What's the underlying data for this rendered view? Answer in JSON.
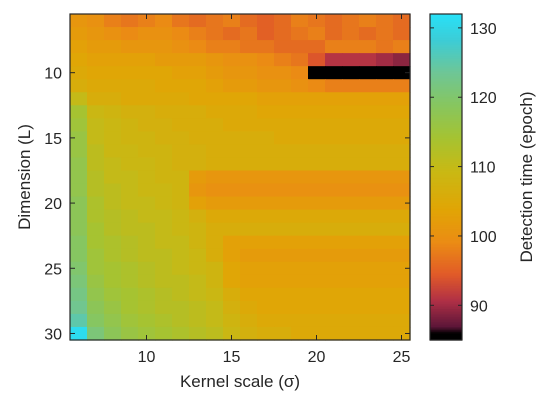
{
  "chart_data": {
    "type": "heatmap",
    "title": "",
    "xlabel": "Kernel scale (σ)",
    "ylabel": "Dimension (L)",
    "x": [
      6,
      7,
      8,
      9,
      10,
      11,
      12,
      13,
      14,
      15,
      16,
      17,
      18,
      19,
      20,
      21,
      22,
      23,
      24,
      25
    ],
    "y": [
      6,
      7,
      8,
      9,
      10,
      11,
      12,
      13,
      14,
      15,
      16,
      17,
      18,
      19,
      20,
      21,
      22,
      23,
      24,
      25,
      26,
      27,
      28,
      29,
      30
    ],
    "xlim": [
      5.5,
      25.5
    ],
    "ylim": [
      5.5,
      30.5
    ],
    "x_ticks": [
      10,
      15,
      20,
      25
    ],
    "y_ticks": [
      10,
      15,
      20,
      25,
      30
    ],
    "y_reversed": true,
    "colorbar": {
      "label": "Detection time (epoch)",
      "min": 85,
      "max": 132,
      "ticks": [
        90,
        100,
        110,
        120,
        130
      ]
    },
    "grid": false,
    "z": [
      [
        101,
        100,
        98,
        97,
        98,
        99,
        97,
        96,
        97,
        98,
        96,
        95,
        96,
        98,
        97,
        96,
        97,
        98,
        97,
        96
      ],
      [
        102,
        101,
        100,
        99,
        100,
        100,
        99,
        98,
        97,
        96,
        97,
        95,
        96,
        97,
        98,
        96,
        97,
        96,
        97,
        96
      ],
      [
        103,
        102,
        102,
        101,
        101,
        101,
        100,
        99,
        98,
        98,
        97,
        97,
        96,
        96,
        96,
        98,
        98,
        98,
        97,
        98
      ],
      [
        104,
        103,
        103,
        103,
        103,
        102,
        102,
        102,
        101,
        100,
        100,
        99,
        98,
        97,
        94,
        91,
        91,
        91,
        90,
        89
      ],
      [
        105,
        104,
        104,
        104,
        104,
        104,
        103,
        103,
        102,
        101,
        101,
        100,
        100,
        99,
        85,
        85,
        85,
        85,
        85,
        85
      ],
      [
        106,
        105,
        105,
        105,
        105,
        104,
        104,
        104,
        103,
        102,
        102,
        101,
        101,
        100,
        99,
        98,
        98,
        98,
        98,
        98
      ],
      [
        110,
        106,
        106,
        105,
        105,
        105,
        105,
        104,
        104,
        104,
        104,
        103,
        103,
        103,
        103,
        103,
        103,
        103,
        103,
        103
      ],
      [
        114,
        109,
        108,
        107,
        107,
        106,
        106,
        106,
        105,
        105,
        105,
        104,
        104,
        104,
        104,
        104,
        104,
        104,
        104,
        104
      ],
      [
        115,
        110,
        109,
        108,
        107,
        107,
        106,
        106,
        106,
        105,
        105,
        105,
        105,
        105,
        105,
        105,
        105,
        105,
        105,
        105
      ],
      [
        116,
        110,
        109,
        108,
        108,
        107,
        107,
        106,
        106,
        106,
        106,
        106,
        105,
        105,
        105,
        105,
        105,
        105,
        105,
        105
      ],
      [
        116,
        111,
        109,
        109,
        108,
        108,
        107,
        107,
        106,
        106,
        106,
        106,
        106,
        106,
        106,
        106,
        106,
        106,
        106,
        106
      ],
      [
        117,
        111,
        110,
        109,
        109,
        108,
        107,
        107,
        106,
        106,
        106,
        106,
        106,
        106,
        106,
        106,
        106,
        106,
        106,
        106
      ],
      [
        117,
        112,
        110,
        110,
        109,
        108,
        108,
        102,
        101,
        101,
        101,
        101,
        101,
        101,
        101,
        101,
        101,
        101,
        101,
        101
      ],
      [
        117,
        112,
        111,
        110,
        109,
        109,
        108,
        101,
        100,
        100,
        100,
        100,
        100,
        100,
        100,
        100,
        100,
        100,
        100,
        100
      ],
      [
        118,
        113,
        111,
        110,
        110,
        109,
        108,
        103,
        102,
        102,
        102,
        102,
        102,
        102,
        102,
        102,
        102,
        102,
        102,
        102
      ],
      [
        118,
        113,
        112,
        111,
        110,
        110,
        109,
        107,
        105,
        105,
        105,
        105,
        105,
        105,
        105,
        105,
        105,
        105,
        105,
        105
      ],
      [
        118,
        114,
        112,
        111,
        111,
        110,
        109,
        108,
        106,
        106,
        106,
        106,
        106,
        106,
        106,
        106,
        106,
        106,
        106,
        106
      ],
      [
        119,
        114,
        113,
        112,
        111,
        110,
        110,
        108,
        106,
        103,
        103,
        103,
        103,
        103,
        103,
        103,
        103,
        103,
        103,
        103
      ],
      [
        119,
        115,
        113,
        112,
        111,
        111,
        110,
        109,
        106,
        103,
        102,
        102,
        102,
        102,
        102,
        102,
        102,
        102,
        102,
        102
      ],
      [
        120,
        115,
        114,
        113,
        112,
        111,
        110,
        109,
        108,
        104,
        103,
        103,
        103,
        103,
        103,
        103,
        103,
        103,
        103,
        103
      ],
      [
        121,
        116,
        114,
        113,
        112,
        111,
        111,
        110,
        108,
        104,
        103,
        103,
        103,
        103,
        103,
        103,
        103,
        103,
        103,
        103
      ],
      [
        122,
        117,
        115,
        114,
        113,
        112,
        111,
        110,
        109,
        106,
        104,
        104,
        104,
        104,
        104,
        104,
        104,
        104,
        104,
        104
      ],
      [
        123,
        118,
        116,
        114,
        113,
        112,
        112,
        111,
        110,
        107,
        105,
        104,
        104,
        104,
        104,
        104,
        104,
        104,
        104,
        104
      ],
      [
        125,
        119,
        117,
        115,
        114,
        113,
        112,
        111,
        110,
        108,
        106,
        105,
        105,
        105,
        105,
        105,
        105,
        105,
        105,
        105
      ],
      [
        131,
        121,
        118,
        116,
        115,
        114,
        113,
        112,
        111,
        109,
        107,
        106,
        106,
        105,
        105,
        105,
        105,
        105,
        105,
        105
      ]
    ]
  }
}
